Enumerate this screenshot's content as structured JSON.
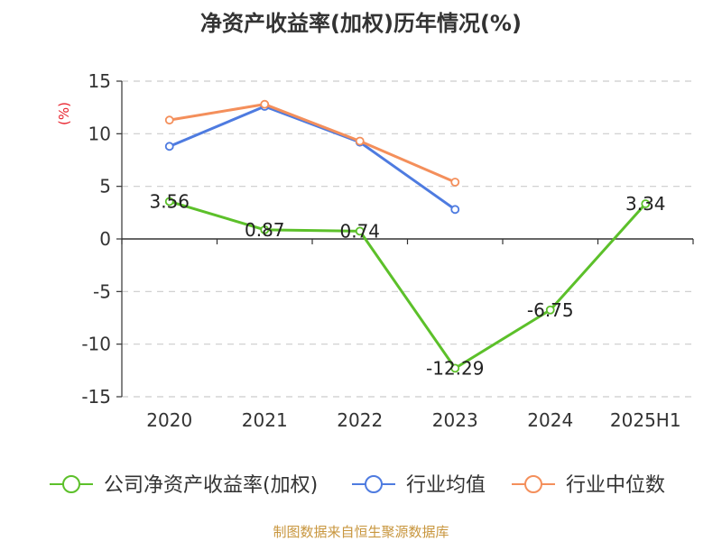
{
  "chart_data": {
    "type": "line",
    "title": "净资产收益率(加权)历年情况(%)",
    "ylabel": "(%)",
    "xlabel": "",
    "categories": [
      "2020",
      "2021",
      "2022",
      "2023",
      "2024",
      "2025H1"
    ],
    "ylim": [
      -15,
      15
    ],
    "yticks": [
      15,
      10,
      5,
      0,
      -5,
      -10,
      -15
    ],
    "grid": true,
    "legend_position": "bottom",
    "series": [
      {
        "name": "公司净资产收益率(加权)",
        "color": "#5cc02a",
        "values": [
          3.56,
          0.87,
          0.74,
          -12.29,
          -6.75,
          3.34
        ],
        "labels": [
          "3.56",
          "0.87",
          "0.74",
          "-12.29",
          "-6.75",
          "3.34"
        ]
      },
      {
        "name": "行业均值",
        "color": "#4e7be0",
        "values": [
          8.8,
          12.6,
          9.2,
          2.8,
          null,
          null
        ]
      },
      {
        "name": "行业中位数",
        "color": "#f48f5b",
        "values": [
          11.3,
          12.8,
          9.3,
          5.4,
          null,
          null
        ]
      }
    ]
  },
  "source": "制图数据来自恒生聚源数据库"
}
